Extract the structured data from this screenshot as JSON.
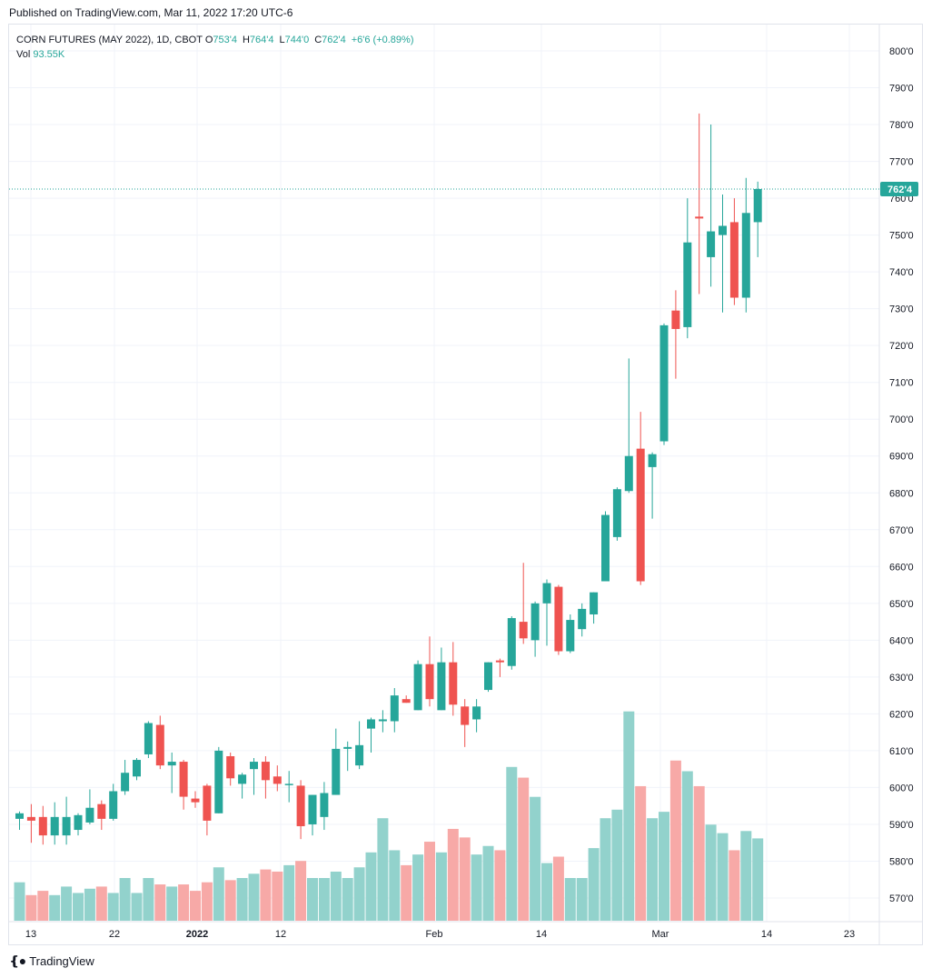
{
  "header": {
    "published": "Published on TradingView.com, Mar 11, 2022 17:20 UTC-6"
  },
  "legend": {
    "symbol": "CORN FUTURES (MAY 2022), 1D, CBOT",
    "o_label": "O",
    "o_value": "753'4",
    "h_label": "H",
    "h_value": "764'4",
    "l_label": "L",
    "l_value": "744'0",
    "c_label": "C",
    "c_value": "762'4",
    "change": "+6'6 (+0.89%)",
    "vol_label": "Vol",
    "vol_value": "93.55K"
  },
  "footer": {
    "brand": "TradingView"
  },
  "colors": {
    "up": "#26a69a",
    "down": "#ef5350",
    "up_vol": "#92d2cc",
    "down_vol": "#f7a9a7",
    "grid": "#f0f3fa"
  },
  "chart_data": {
    "type": "candlestick",
    "title": "CORN FUTURES (MAY 2022), 1D, CBOT",
    "ylim": [
      563,
      805
    ],
    "y_ticks": [
      "570'0",
      "580'0",
      "590'0",
      "600'0",
      "610'0",
      "620'0",
      "630'0",
      "640'0",
      "650'0",
      "660'0",
      "670'0",
      "680'0",
      "690'0",
      "700'0",
      "710'0",
      "720'0",
      "730'0",
      "740'0",
      "750'0",
      "760'0",
      "770'0",
      "780'0",
      "790'0",
      "800'0"
    ],
    "x_labels": [
      "13",
      "22",
      "2022",
      "12",
      "Feb",
      "14",
      "Mar",
      "14",
      "23"
    ],
    "last_price_label": "762'4",
    "last_price": 762.5,
    "grid": true,
    "volume_series_units": "K",
    "candles": [
      {
        "o": 591.5,
        "h": 593.5,
        "l": 588.5,
        "c": 593,
        "v": 73
      },
      {
        "o": 592,
        "h": 595.5,
        "l": 585,
        "c": 591,
        "v": 67
      },
      {
        "o": 592,
        "h": 595,
        "l": 584.5,
        "c": 587,
        "v": 69
      },
      {
        "o": 587,
        "h": 596,
        "l": 584.5,
        "c": 592,
        "v": 67
      },
      {
        "o": 587,
        "h": 597.5,
        "l": 584.5,
        "c": 592,
        "v": 71
      },
      {
        "o": 588.5,
        "h": 593,
        "l": 587,
        "c": 592.5,
        "v": 68
      },
      {
        "o": 590.5,
        "h": 599.5,
        "l": 590,
        "c": 594.5,
        "v": 70
      },
      {
        "o": 595.5,
        "h": 596.5,
        "l": 588.5,
        "c": 591.5,
        "v": 71
      },
      {
        "o": 591.5,
        "h": 601,
        "l": 591,
        "c": 599,
        "v": 68
      },
      {
        "o": 599,
        "h": 607.5,
        "l": 598,
        "c": 604,
        "v": 75
      },
      {
        "o": 603,
        "h": 608,
        "l": 602,
        "c": 607.5,
        "v": 68
      },
      {
        "o": 609,
        "h": 618,
        "l": 608,
        "c": 617.5,
        "v": 75
      },
      {
        "o": 617,
        "h": 619.5,
        "l": 605,
        "c": 606,
        "v": 72
      },
      {
        "o": 606,
        "h": 609.5,
        "l": 598.5,
        "c": 607,
        "v": 71
      },
      {
        "o": 607,
        "h": 607.5,
        "l": 594,
        "c": 597.5,
        "v": 72
      },
      {
        "o": 597,
        "h": 599,
        "l": 594.5,
        "c": 596,
        "v": 69
      },
      {
        "o": 600.5,
        "h": 601,
        "l": 587,
        "c": 591,
        "v": 73
      },
      {
        "o": 593,
        "h": 611,
        "l": 593,
        "c": 610,
        "v": 80
      },
      {
        "o": 608.5,
        "h": 609.5,
        "l": 600.5,
        "c": 602.5,
        "v": 74
      },
      {
        "o": 601,
        "h": 604,
        "l": 597,
        "c": 603.5,
        "v": 75
      },
      {
        "o": 605,
        "h": 608,
        "l": 598,
        "c": 607,
        "v": 77
      },
      {
        "o": 607,
        "h": 608.5,
        "l": 597,
        "c": 602,
        "v": 79
      },
      {
        "o": 603,
        "h": 606,
        "l": 599,
        "c": 601,
        "v": 78
      },
      {
        "o": 601,
        "h": 604.5,
        "l": 596,
        "c": 601,
        "v": 81
      },
      {
        "o": 600.5,
        "h": 602,
        "l": 586,
        "c": 589.5,
        "v": 83
      },
      {
        "o": 590,
        "h": 598,
        "l": 587,
        "c": 598,
        "v": 75
      },
      {
        "o": 592,
        "h": 601.5,
        "l": 588.5,
        "c": 598.5,
        "v": 75
      },
      {
        "o": 598,
        "h": 616,
        "l": 598,
        "c": 610.5,
        "v": 78
      },
      {
        "o": 610.5,
        "h": 612.5,
        "l": 604.5,
        "c": 611,
        "v": 75
      },
      {
        "o": 606,
        "h": 618,
        "l": 605,
        "c": 611.5,
        "v": 80
      },
      {
        "o": 616,
        "h": 619,
        "l": 609.5,
        "c": 618.5,
        "v": 87
      },
      {
        "o": 618,
        "h": 621,
        "l": 615,
        "c": 618.5,
        "v": 103
      },
      {
        "o": 618,
        "h": 627,
        "l": 615,
        "c": 625,
        "v": 88
      },
      {
        "o": 624,
        "h": 625,
        "l": 623,
        "c": 623,
        "v": 81
      },
      {
        "o": 621,
        "h": 634.5,
        "l": 621,
        "c": 633.5,
        "v": 86
      },
      {
        "o": 633.5,
        "h": 641,
        "l": 622,
        "c": 624,
        "v": 92
      },
      {
        "o": 621,
        "h": 638,
        "l": 621,
        "c": 634,
        "v": 87
      },
      {
        "o": 634,
        "h": 639.5,
        "l": 619.5,
        "c": 622.5,
        "v": 98
      },
      {
        "o": 622,
        "h": 624,
        "l": 611,
        "c": 617,
        "v": 94
      },
      {
        "o": 618.5,
        "h": 624,
        "l": 615,
        "c": 622,
        "v": 86
      },
      {
        "o": 626.5,
        "h": 634,
        "l": 626,
        "c": 634,
        "v": 90
      },
      {
        "o": 634.5,
        "h": 635,
        "l": 630,
        "c": 634,
        "v": 88
      },
      {
        "o": 633,
        "h": 646.5,
        "l": 632,
        "c": 646,
        "v": 127
      },
      {
        "o": 645,
        "h": 661,
        "l": 639,
        "c": 640.5,
        "v": 122
      },
      {
        "o": 640,
        "h": 650.5,
        "l": 635.5,
        "c": 650,
        "v": 113
      },
      {
        "o": 650,
        "h": 656.5,
        "l": 638.5,
        "c": 655.5,
        "v": 82
      },
      {
        "o": 654.5,
        "h": 655,
        "l": 636,
        "c": 637,
        "v": 85
      },
      {
        "o": 637,
        "h": 647,
        "l": 636.5,
        "c": 645.5,
        "v": 75
      },
      {
        "o": 643,
        "h": 650,
        "l": 641,
        "c": 648.5,
        "v": 75
      },
      {
        "o": 647,
        "h": 653,
        "l": 644.5,
        "c": 653,
        "v": 89
      },
      {
        "o": 656,
        "h": 675,
        "l": 656,
        "c": 674,
        "v": 103
      },
      {
        "o": 668,
        "h": 681.5,
        "l": 667,
        "c": 681,
        "v": 107
      },
      {
        "o": 680.5,
        "h": 716.5,
        "l": 680,
        "c": 690,
        "v": 153
      },
      {
        "o": 692,
        "h": 702,
        "l": 655,
        "c": 656,
        "v": 118
      },
      {
        "o": 687,
        "h": 691,
        "l": 673,
        "c": 690.5,
        "v": 103
      },
      {
        "o": 694,
        "h": 726,
        "l": 693,
        "c": 725.5,
        "v": 106
      },
      {
        "o": 729.5,
        "h": 735,
        "l": 711,
        "c": 724.5,
        "v": 130
      },
      {
        "o": 725,
        "h": 760,
        "l": 722,
        "c": 748,
        "v": 125
      },
      {
        "o": 755,
        "h": 783,
        "l": 734,
        "c": 754.5,
        "v": 118
      },
      {
        "o": 744,
        "h": 780,
        "l": 736,
        "c": 751,
        "v": 100
      },
      {
        "o": 750,
        "h": 761,
        "l": 729,
        "c": 752.5,
        "v": 96
      },
      {
        "o": 753.5,
        "h": 760,
        "l": 731,
        "c": 733,
        "v": 88
      },
      {
        "o": 733,
        "h": 765.5,
        "l": 729,
        "c": 756,
        "v": 97
      },
      {
        "o": 753.5,
        "h": 764.5,
        "l": 744,
        "c": 762.5,
        "v": 93.55
      }
    ]
  }
}
